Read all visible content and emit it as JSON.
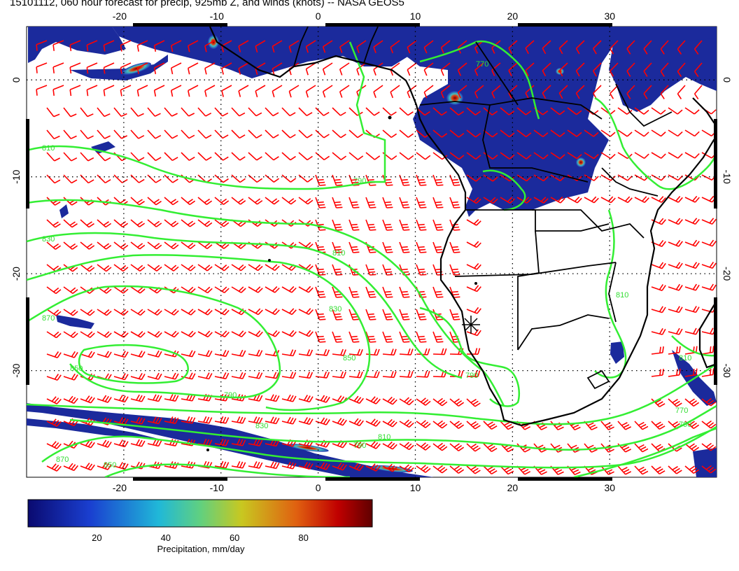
{
  "title": "15101112, 060 hour forecast for precip, 925mb Z, and winds (knots) -- NASA GEOS5",
  "map": {
    "lon_range": [
      -30,
      41
    ],
    "lat_range": [
      -41,
      5.5
    ],
    "lon_ticks": [
      "-20",
      "-10",
      "0",
      "10",
      "20",
      "30"
    ],
    "lat_ticks": [
      "0",
      "-10",
      "-20",
      "-30"
    ],
    "graticule": "dotted",
    "contour_labels": [
      "810",
      "790",
      "830",
      "850",
      "870",
      "810",
      "790",
      "770",
      "850",
      "830",
      "810",
      "790",
      "770",
      "790",
      "810",
      "870",
      "850",
      "830",
      "810",
      "790"
    ],
    "colors": {
      "wind_barbs": "#ff0000",
      "contours": "#33ee33",
      "coastline": "#000000",
      "precip_low": "#1a1a99",
      "precip_high": "#aa0000"
    }
  },
  "colorbar": {
    "ticks": [
      "20",
      "40",
      "60",
      "80"
    ],
    "label": "Precipitation, mm/day",
    "range": [
      0,
      100
    ]
  }
}
